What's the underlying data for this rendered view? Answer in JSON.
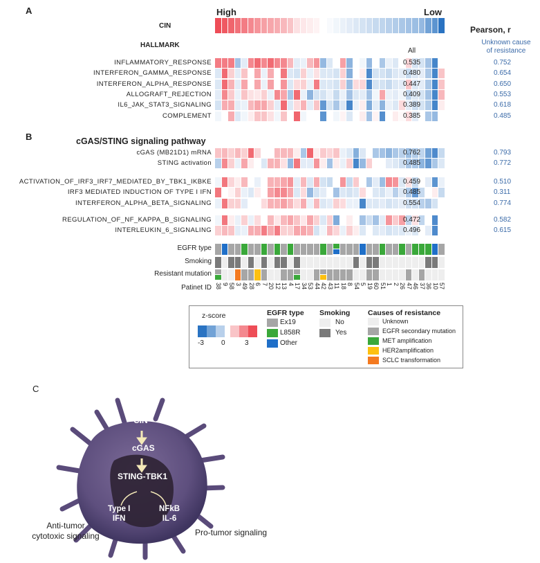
{
  "panels": {
    "a": "A",
    "b": "B",
    "c": "C"
  },
  "header": {
    "high": "High",
    "low": "Low",
    "cin": "CIN",
    "hallmark": "HALLMARK",
    "pearson": "Pearson, r",
    "all": "All",
    "unknown_line1": "Unknown cause",
    "unknown_line2": "of resistance"
  },
  "colors": {
    "red": "#ee4d57",
    "blue": "#2a73c2",
    "ex19": "#a6a6a6",
    "l858r": "#3aa83a",
    "other": "#1f6fc8",
    "smoke_no": "#eeeeee",
    "smoke_yes": "#7a7a7a",
    "unknown": "#eeeeee",
    "secondary": "#a6a6a6",
    "met": "#3aa83a",
    "her2": "#fdc010",
    "sclc": "#f47a20"
  },
  "cin_values": [
    3,
    2.8,
    2.6,
    2.4,
    2.2,
    2,
    1.8,
    1.6,
    1.5,
    1.4,
    1.2,
    1,
    0.5,
    0.4,
    0.3,
    0.2,
    0,
    -0.1,
    -0.2,
    -0.3,
    -0.4,
    -0.5,
    -0.6,
    -0.7,
    -0.8,
    -0.9,
    -1,
    -1.1,
    -1.2,
    -1.3,
    -1.4,
    -1.5,
    -2,
    -2.3,
    -3
  ],
  "hallmark_rows": [
    {
      "name": "INFLAMMATORY_RESPONSE",
      "all": "0.535",
      "unknown": "0.752",
      "values": [
        2.2,
        2.2,
        2.2,
        -1.3,
        -0.4,
        2,
        2.5,
        2,
        2.5,
        2,
        2,
        1.2,
        -0.4,
        -0.3,
        1.2,
        1.8,
        -1.5,
        -0.5,
        0,
        1.6,
        -1.6,
        0,
        -0.2,
        -1.5,
        0,
        -1.2,
        -0.3,
        -0.5,
        0,
        0.7,
        -0.6,
        -0.6,
        -1.3,
        -2.6,
        0
      ]
    },
    {
      "name": "INTERFERON_GAMMA_RESPONSE",
      "all": "0.480",
      "unknown": "0.654",
      "values": [
        -0.5,
        2.5,
        0.8,
        -0.4,
        1,
        0,
        1.5,
        -0.3,
        1.4,
        0,
        2.3,
        -0.5,
        -0.6,
        0.8,
        -0.3,
        0.5,
        -0.5,
        -0.5,
        -0.6,
        0.8,
        -1.7,
        0,
        0.3,
        -2.5,
        -0.6,
        -0.6,
        -0.8,
        -0.5,
        -0.4,
        -0.8,
        -0.5,
        -0.4,
        -1.2,
        -2.6,
        1
      ]
    },
    {
      "name": "INTERFERON_ALPHA_RESPONSE",
      "all": "0.447",
      "unknown": "0.650",
      "values": [
        -0.5,
        2.5,
        1.3,
        -0.4,
        1.5,
        0,
        1.5,
        -0.3,
        1.6,
        0,
        1.8,
        -0.5,
        0.6,
        0.8,
        -0.3,
        2.2,
        -0.5,
        -0.5,
        -0.6,
        0.8,
        -1.4,
        0.6,
        0.7,
        -2.5,
        -0.6,
        -0.6,
        -0.8,
        -0.5,
        -0.4,
        1,
        -0.5,
        -0.4,
        -1.2,
        -2.6,
        1
      ]
    },
    {
      "name": "ALLOGRAFT_REJECTION",
      "all": "0.409",
      "unknown": "0.553",
      "values": [
        -0.4,
        2,
        0.9,
        -0.3,
        1,
        0.5,
        0.4,
        0.8,
        -0.3,
        2,
        1.5,
        -1.2,
        2.5,
        -0.3,
        -1.6,
        -0.6,
        -0.6,
        -0.3,
        -0.8,
        -0.3,
        -1.3,
        -0.5,
        -0.4,
        -1.3,
        -0.2,
        1.5,
        -0.3,
        -0.4,
        -0.2,
        -0.9,
        -0.5,
        -0.6,
        -1.3,
        -2.6,
        1.2
      ]
    },
    {
      "name": "IL6_JAK_STAT3_SIGNALING",
      "all": "0.389",
      "unknown": "0.618",
      "values": [
        -0.6,
        1.4,
        1.4,
        -0.4,
        -0.3,
        1.2,
        1.5,
        1.5,
        0.8,
        -0.4,
        2.5,
        -0.5,
        0.6,
        1.3,
        -0.4,
        1,
        -2.2,
        -0.6,
        -1.2,
        -0.5,
        -2.6,
        -0.3,
        0.3,
        -1.8,
        -0.4,
        -1.6,
        -0.3,
        -0.5,
        0.6,
        -0.4,
        -0.7,
        -0.6,
        -1.1,
        -2.6,
        0.3
      ]
    },
    {
      "name": "COMPLEMENT",
      "all": "0.385",
      "unknown": "0.485",
      "values": [
        -0.2,
        0,
        1.4,
        -0.5,
        -0.2,
        0.3,
        1,
        1,
        0.5,
        -0.2,
        1,
        0,
        2.6,
        -0.2,
        0,
        0,
        -2.3,
        0,
        -0.2,
        0.2,
        -0.5,
        0,
        0.3,
        -1.3,
        0.2,
        -2.4,
        0,
        0.3,
        0.1,
        0.6,
        -0.4,
        0,
        -1.2,
        -1.5,
        0
      ]
    }
  ],
  "pathway_title": "cGAS/STING signaling pathway",
  "pathway_groups": [
    [
      {
        "name": "cGAS (MB21D1) mRNA",
        "all": "0.762",
        "unknown": "0.793",
        "values": [
          1,
          1.2,
          0.8,
          1.2,
          0.8,
          2.5,
          0.7,
          0,
          0,
          1.2,
          1.2,
          1.2,
          0.3,
          -1.2,
          2.6,
          0.3,
          0.9,
          0.7,
          1,
          -0.3,
          -0.5,
          -1.7,
          -0.5,
          0,
          -1.2,
          -1.3,
          -1.6,
          -1.2,
          -1,
          -1.4,
          -1.1,
          -0.9,
          -2,
          -2.5,
          -0.8
        ]
      },
      {
        "name": "STING activation",
        "all": "0.485",
        "unknown": "0.772",
        "values": [
          -1,
          2,
          0.8,
          -0.3,
          1.5,
          0.3,
          0,
          -0.5,
          1.3,
          1.3,
          0.5,
          -1.5,
          2.3,
          -0.4,
          -0.4,
          1.8,
          0.3,
          -1.3,
          0.3,
          -0.3,
          0.8,
          -2.6,
          -1.5,
          0.8,
          0,
          0,
          -0.4,
          -0.5,
          -0.7,
          -1.2,
          -1.2,
          -1.6,
          -2.2,
          -1.2,
          -0.5
        ]
      }
    ],
    [
      {
        "name": "ACTIVATION_OF_IRF3_IRF7_MEDIATED_BY_TBK1_IKBKE",
        "all": "0.459",
        "unknown": "0.510",
        "values": [
          -0.2,
          2.3,
          0.7,
          0.3,
          1.2,
          0,
          -0.3,
          0,
          1.3,
          1.3,
          1.5,
          1.8,
          -0.4,
          1.2,
          -0.5,
          1.4,
          -0.6,
          -0.8,
          0,
          1.8,
          -0.8,
          0.9,
          0,
          -1.2,
          -0.4,
          -1.4,
          2,
          1.8,
          -0.5,
          0.5,
          -0.8,
          0,
          -0.4,
          -2.3,
          -0.3
        ]
      },
      {
        "name": "IRF3 MEDIATED INDUCTION OF TYPE I IFN",
        "all": "0.485",
        "unknown": "0.311",
        "values": [
          2.3,
          0,
          0.2,
          0.8,
          -0.3,
          -0.5,
          0.3,
          0,
          1.6,
          2,
          2,
          1.5,
          -0.5,
          0.6,
          -1.5,
          -0.6,
          -0.4,
          0,
          -1.3,
          -0.5,
          -0.6,
          -0.5,
          0.6,
          0,
          -0.5,
          -0.6,
          -0.3,
          -1,
          -0.5,
          -1.2,
          -2.2,
          -0.8,
          0,
          0.3,
          -0.8
        ]
      },
      {
        "name": "INTERFERON_ALPHA_BETA_SIGNALING",
        "all": "0.554",
        "unknown": "0.774",
        "values": [
          -0.3,
          2.3,
          0.8,
          0.8,
          -0.4,
          0,
          0,
          0.6,
          1.3,
          1.3,
          1.6,
          1.2,
          0.6,
          1.4,
          -0.3,
          1.2,
          -0.5,
          -0.4,
          0.8,
          0.6,
          -0.3,
          -0.3,
          -2.6,
          -0.5,
          -0.5,
          -0.4,
          -0.6,
          -0.5,
          -0.4,
          -0.7,
          -0.7,
          -1,
          -1.2,
          -0.6,
          0
        ]
      }
    ],
    [
      {
        "name": "REGULATION_OF_NF_KAPPA_B_SIGNALING",
        "all": "0.472",
        "unknown": "0.582",
        "values": [
          -0.2,
          2.3,
          0.3,
          -0.3,
          0.8,
          -0.3,
          0.6,
          0,
          1.2,
          0.4,
          1.2,
          1.5,
          1,
          0.4,
          1.5,
          0.8,
          -0.5,
          0.8,
          -1.8,
          0,
          0.3,
          0,
          -1.3,
          -0.7,
          -1.3,
          -0.4,
          1.8,
          0.9,
          1.6,
          -0.9,
          0.5,
          -0.9,
          0,
          -2.5,
          0
        ]
      },
      {
        "name": "INTERLEUKIN_6_SIGNALING",
        "all": "0.496",
        "unknown": "0.615",
        "values": [
          0.8,
          1.2,
          1,
          -0.4,
          -0.3,
          1.4,
          1.4,
          2.2,
          1.4,
          2.2,
          0.8,
          0.8,
          1.5,
          1.5,
          1.3,
          -0.6,
          -0.2,
          1.2,
          0.7,
          -0.3,
          0.8,
          0.3,
          -0.5,
          0,
          -0.5,
          -0.4,
          -0.6,
          -0.5,
          -0.5,
          -0.3,
          -0.5,
          0,
          -0.4,
          -2.5,
          0
        ]
      }
    ]
  ],
  "annotations": {
    "egfr_label": "EGFR type",
    "smoking_label": "Smoking",
    "resistant_label": "Resistant mutation",
    "patient_label": "Patinet ID",
    "egfr": [
      "Ex19",
      "Other",
      "Ex19",
      "Ex19",
      "L858R",
      "Ex19",
      "Ex19",
      "L858R",
      "Ex19",
      "L858R",
      "Ex19",
      "L858R",
      "Ex19",
      "Ex19",
      "Ex19",
      "Ex19",
      "L858R",
      "Ex19",
      "L858R/Other",
      "Ex19",
      "Ex19",
      "Ex19",
      "Other",
      "Ex19",
      "Ex19",
      "L858R",
      "Ex19",
      "Ex19",
      "L858R",
      "Ex19",
      "L858R",
      "L858R",
      "L858R",
      "Other",
      "Ex19"
    ],
    "smoking": [
      "Yes",
      "No",
      "Yes",
      "Yes",
      "No",
      "Yes",
      "No",
      "Yes",
      "No",
      "Yes",
      "Yes",
      "No",
      "Yes",
      "No",
      "No",
      "No",
      "No",
      "No",
      "No",
      "No",
      "No",
      "Yes",
      "No",
      "Yes",
      "Yes",
      "No",
      "No",
      "No",
      "No",
      "No",
      "No",
      "No",
      "Yes",
      "Yes",
      "No"
    ],
    "resistance": [
      "secondary/met",
      "unknown",
      "unknown",
      "sclc",
      "secondary",
      "secondary",
      "her2",
      "secondary",
      "unknown",
      "unknown",
      "secondary",
      "secondary",
      "secondary/met",
      "unknown",
      "unknown",
      "secondary",
      "secondary/her2",
      "secondary",
      "secondary",
      "secondary",
      "secondary",
      "unknown",
      "unknown",
      "secondary",
      "secondary",
      "unknown",
      "unknown",
      "unknown",
      "unknown",
      "secondary",
      "unknown",
      "secondary",
      "unknown",
      "unknown",
      "unknown"
    ],
    "patient_ids": [
      "38",
      "9",
      "58",
      "3",
      "49",
      "28",
      "6",
      "7",
      "20",
      "12",
      "13",
      "4",
      "17",
      "34",
      "53",
      "44",
      "42",
      "43",
      "11",
      "18",
      "8",
      "54",
      "5",
      "19",
      "60",
      "51",
      "1",
      "2",
      "26",
      "47",
      "46",
      "37",
      "36",
      "10",
      "57"
    ]
  },
  "legend": {
    "zscore_title": "z-score",
    "zmin": "-3",
    "zmid": "0",
    "zmax": "3",
    "egfr_title": "EGFR type",
    "egfr_items": [
      "Ex19",
      "L858R",
      "Other"
    ],
    "smoking_title": "Smoking",
    "smoking_items": [
      "No",
      "Yes"
    ],
    "resistance_title": "Causes of resistance",
    "resistance_items": [
      "Unknown",
      "EGFR secondary mutation",
      "MET amplification",
      "HER2amplification",
      "SCLC transformation"
    ]
  },
  "diagram": {
    "cin": "CIN",
    "cgas": "cGAS",
    "sting": "STING-TBK1",
    "type1_l1": "Type I",
    "type1_l2": "IFN",
    "nfkb_l1": "NFkB",
    "nfkb_l2": "IL-6",
    "anti_l1": "Anti-tumor",
    "anti_l2": "cytotoxic signaling",
    "pro": "Pro-tumor signaling"
  }
}
